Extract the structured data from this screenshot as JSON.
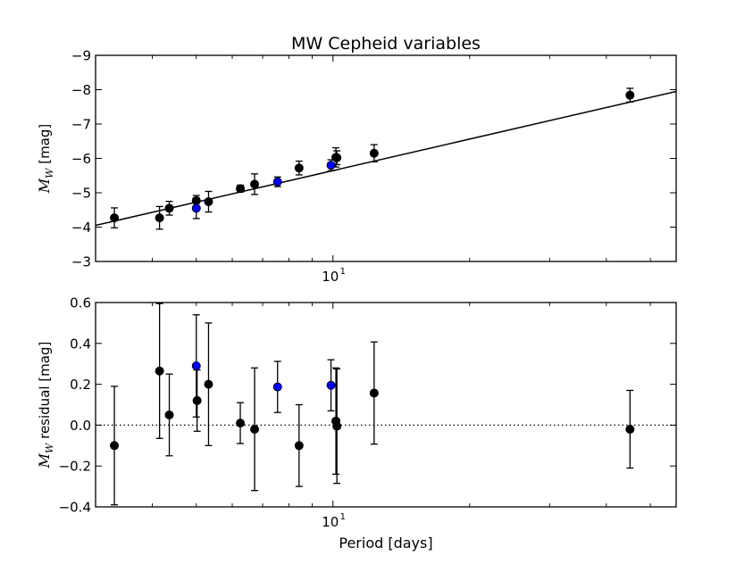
{
  "chart_data": [
    {
      "type": "scatter",
      "title": "MW Cepheid variables",
      "xlabel": "",
      "ylabel": {
        "symbol": "M",
        "subscript": "W",
        "unit": "[mag]"
      },
      "xscale": "log",
      "xlim": [
        3.0,
        57.0
      ],
      "ylim": [
        -3,
        -9
      ],
      "y_inverted": true,
      "yticks": [
        {
          "value": -9,
          "label": "−9"
        },
        {
          "value": -8,
          "label": "−8"
        },
        {
          "value": -7,
          "label": "−7"
        },
        {
          "value": -6,
          "label": "−6"
        },
        {
          "value": -5,
          "label": "−5"
        },
        {
          "value": -4,
          "label": "−4"
        },
        {
          "value": -3,
          "label": "−3"
        }
      ],
      "xticks": [
        {
          "value": 10,
          "base": "10",
          "exp": "1"
        }
      ],
      "fit_line": {
        "x": [
          3.0,
          57.0
        ],
        "y": [
          -4.05,
          -7.95
        ],
        "color": "#000000"
      },
      "series": [
        {
          "name": "black",
          "color": "#000000",
          "points": [
            {
              "x": 3.3,
              "y": -4.27,
              "err": 0.29
            },
            {
              "x": 4.15,
              "y": -4.27,
              "err": 0.33
            },
            {
              "x": 4.36,
              "y": -4.55,
              "err": 0.2
            },
            {
              "x": 5.0,
              "y": -4.77,
              "err": 0.15
            },
            {
              "x": 5.32,
              "y": -4.74,
              "err": 0.3
            },
            {
              "x": 6.25,
              "y": -5.12,
              "err": 0.1
            },
            {
              "x": 6.72,
              "y": -5.25,
              "err": 0.3
            },
            {
              "x": 8.42,
              "y": -5.72,
              "err": 0.2
            },
            {
              "x": 10.15,
              "y": -6.03,
              "err": 0.28
            },
            {
              "x": 10.2,
              "y": -6.02,
              "err": 0.2
            },
            {
              "x": 12.32,
              "y": -6.15,
              "err": 0.25
            },
            {
              "x": 45.1,
              "y": -7.84,
              "err": 0.2
            }
          ]
        },
        {
          "name": "blue",
          "color": "#0000ff",
          "points": [
            {
              "x": 5.0,
              "y": -4.55,
              "err": 0.3
            },
            {
              "x": 7.55,
              "y": -5.32,
              "err": 0.14
            },
            {
              "x": 9.9,
              "y": -5.8,
              "err": 0.16
            }
          ]
        }
      ]
    },
    {
      "type": "scatter",
      "title": "",
      "xlabel": "Period [days]",
      "ylabel": {
        "symbol": "M",
        "subscript": "W",
        "unit": "residual [mag]"
      },
      "xscale": "log",
      "xlim": [
        3.0,
        57.0
      ],
      "ylim": [
        -0.4,
        0.6
      ],
      "yticks": [
        {
          "value": 0.6,
          "label": "0.6"
        },
        {
          "value": 0.4,
          "label": "0.4"
        },
        {
          "value": 0.2,
          "label": "0.2"
        },
        {
          "value": 0.0,
          "label": "0.0"
        },
        {
          "value": -0.2,
          "label": "−0.2"
        },
        {
          "value": -0.4,
          "label": "−0.4"
        }
      ],
      "xticks": [
        {
          "value": 10,
          "base": "10",
          "exp": "1"
        }
      ],
      "reference_line": {
        "y": 0.0,
        "style": "dotted"
      },
      "series": [
        {
          "name": "black",
          "color": "#000000",
          "points": [
            {
              "x": 3.3,
              "y": -0.1,
              "err": 0.29
            },
            {
              "x": 4.15,
              "y": 0.265,
              "err": 0.33
            },
            {
              "x": 4.36,
              "y": 0.05,
              "err": 0.2
            },
            {
              "x": 5.02,
              "y": 0.12,
              "err": 0.15
            },
            {
              "x": 5.32,
              "y": 0.2,
              "err": 0.3
            },
            {
              "x": 6.25,
              "y": 0.01,
              "err": 0.1
            },
            {
              "x": 6.72,
              "y": -0.02,
              "err": 0.3
            },
            {
              "x": 8.42,
              "y": -0.1,
              "err": 0.2
            },
            {
              "x": 10.15,
              "y": 0.02,
              "err": 0.26
            },
            {
              "x": 10.2,
              "y": -0.005,
              "err": 0.28
            },
            {
              "x": 12.32,
              "y": 0.157,
              "err": 0.25
            },
            {
              "x": 45.1,
              "y": -0.02,
              "err": 0.19
            }
          ]
        },
        {
          "name": "blue",
          "color": "#0000ff",
          "points": [
            {
              "x": 5.0,
              "y": 0.29,
              "err": 0.25
            },
            {
              "x": 7.55,
              "y": 0.187,
              "err": 0.125
            },
            {
              "x": 9.9,
              "y": 0.195,
              "err": 0.125
            }
          ]
        }
      ]
    }
  ]
}
